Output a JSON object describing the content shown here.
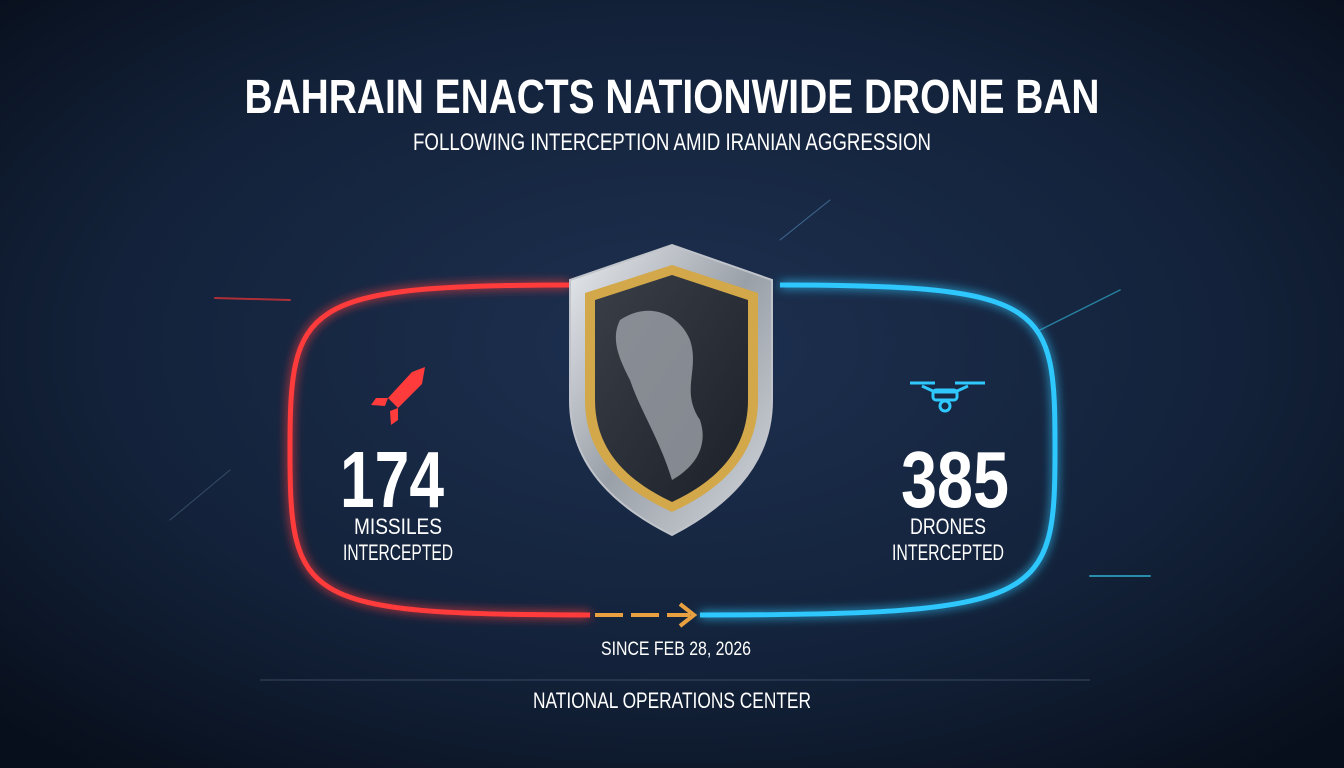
{
  "header": {
    "title": "BAHRAIN ENACTS NATIONWIDE DRONE BAN",
    "subtitle": "FOLLOWING INTERCEPTION AMID IRANIAN AGGRESSION"
  },
  "stats": [
    {
      "value": 174,
      "label": [
        "MISSILES",
        "INTERCEPTED"
      ]
    },
    {
      "value": 385,
      "label": [
        "DRONES",
        "INTERCEPTED"
      ]
    }
  ],
  "since": "SINCE FEB 28, 2026",
  "footer": "NATIONAL OPERATIONS CENTER"
}
